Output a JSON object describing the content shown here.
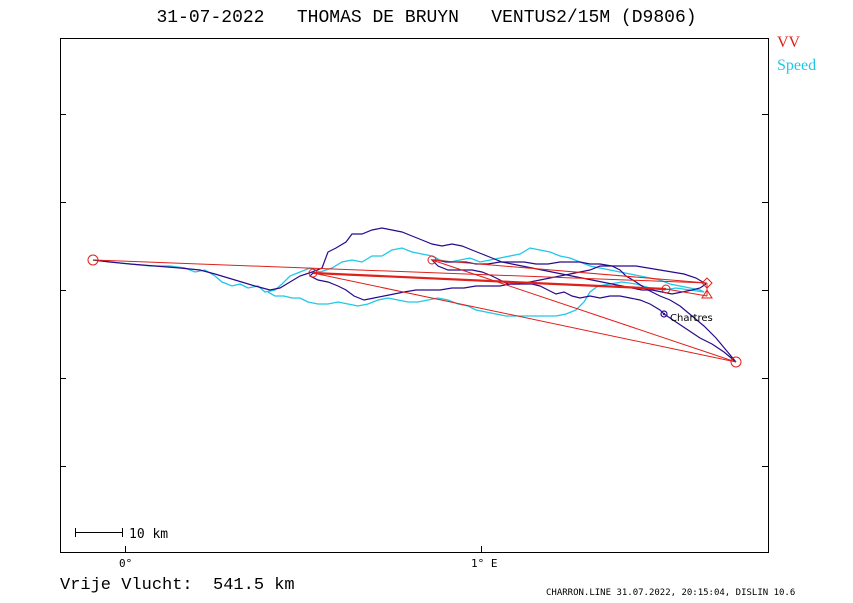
{
  "header": {
    "title": "31-07-2022   THOMAS DE BRUYN   VENTUS2/15M (D9806)"
  },
  "legend": {
    "vv_label": "VV",
    "speed_label": "Speed",
    "vv_color": "#e0201a",
    "speed_color": "#1ec8e8",
    "track_color": "#2a0a8c"
  },
  "map": {
    "x_axis_labels": [
      {
        "text": "0°"
      },
      {
        "text": "1° E"
      }
    ],
    "places": [
      {
        "name": "Chartres"
      }
    ],
    "scale_label": "10 km"
  },
  "footer": {
    "distance_label": "Vrije Vlucht:  541.5 km",
    "software_info": "CHARRON.LINE 31.07.2022, 20:15:04, DISLIN 10.6"
  }
}
